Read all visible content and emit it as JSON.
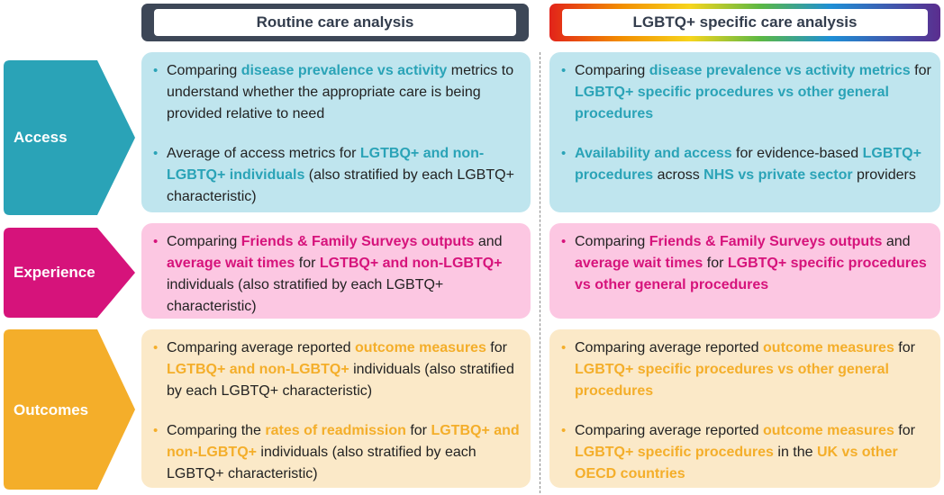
{
  "headers": {
    "routine": "Routine care analysis",
    "lgbtq": "LGBTQ+ specific care analysis"
  },
  "rows": {
    "access": {
      "label": "Access",
      "color": "#2aa3b7",
      "box_color": "#bfe5ee",
      "routine": [
        [
          "Comparing ",
          "disease prevalence vs activity",
          " metrics to understand whether the appropriate care is being provided relative to need"
        ],
        [
          "Average of access metrics for ",
          "LGTBQ+ and non-LGBTQ+ individuals",
          " (also stratified by each LGBTQ+ characteristic)"
        ]
      ],
      "lgbtq": [
        [
          "Comparing ",
          "disease prevalence vs activity metrics",
          " for ",
          "LGBTQ+ specific procedures vs other general procedures"
        ],
        [
          "",
          "Availability and access",
          " for evidence-based ",
          "LGBTQ+ procedures",
          " across ",
          "NHS vs private sector",
          " providers"
        ]
      ]
    },
    "experience": {
      "label": "Experience",
      "color": "#d6137b",
      "box_color": "#fcc7e2",
      "routine": [
        [
          "Comparing ",
          "Friends & Family Surveys outputs",
          " and ",
          "average wait times",
          " for ",
          "LGTBQ+ and non-LGBTQ+",
          " individuals (also stratified by each LGBTQ+ characteristic)"
        ]
      ],
      "lgbtq": [
        [
          "Comparing ",
          "Friends & Family Surveys outputs",
          " and ",
          "average wait times",
          " for ",
          "LGBTQ+ specific procedures vs other general procedures",
          ""
        ]
      ]
    },
    "outcomes": {
      "label": "Outcomes",
      "color": "#f4ae2a",
      "box_color": "#fbe9c8",
      "routine": [
        [
          "Comparing average reported ",
          "outcome measures",
          " for ",
          "LGTBQ+ and non-LGBTQ+",
          " individuals (also stratified by each LGBTQ+ characteristic)"
        ],
        [
          "Comparing the ",
          "rates of readmission",
          " for ",
          "LGTBQ+ and non-LGBTQ+",
          " individuals (also stratified by each LGBTQ+ characteristic)"
        ]
      ],
      "lgbtq": [
        [
          "Comparing average reported ",
          "outcome measures",
          " for ",
          "LGBTQ+ specific procedures vs other general procedures",
          ""
        ],
        [
          "Comparing average reported ",
          "outcome measures",
          " for ",
          "LGBTQ+ specific procedures",
          " in the ",
          "UK vs other OECD countries",
          ""
        ]
      ]
    }
  }
}
